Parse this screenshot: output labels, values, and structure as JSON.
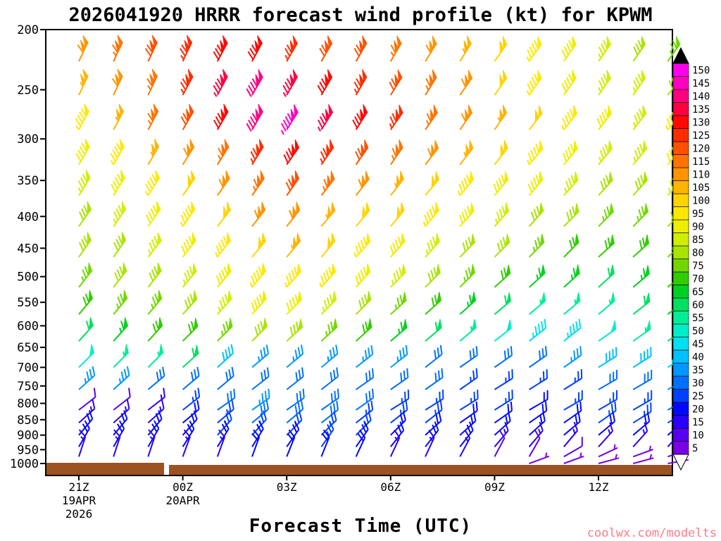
{
  "page": {
    "title": "2026041920 HRRR forecast wind profile (kt) for KPWM",
    "x_axis_title": "Forecast Time (UTC)",
    "watermark": "coolwx.com/modelts"
  },
  "chart_data": {
    "type": "wind-barb-time-height",
    "model": "HRRR",
    "init_time": "2026041920",
    "station": "KPWM",
    "units": "kt",
    "y_scale": "log-pressure",
    "y_ticks": [
      "200",
      "250",
      "300",
      "350",
      "400",
      "450",
      "500",
      "550",
      "600",
      "650",
      "700",
      "750",
      "800",
      "850",
      "900",
      "950",
      "1000"
    ],
    "x_ticks": [
      {
        "col": 0,
        "lines": [
          "21Z",
          "19APR",
          "2026"
        ]
      },
      {
        "col": 3,
        "lines": [
          "00Z",
          "20APR"
        ]
      },
      {
        "col": 6,
        "lines": [
          "03Z"
        ]
      },
      {
        "col": 9,
        "lines": [
          "06Z"
        ]
      },
      {
        "col": 12,
        "lines": [
          "09Z"
        ]
      },
      {
        "col": 15,
        "lines": [
          "12Z"
        ]
      }
    ],
    "times": [
      "21Z",
      "22Z",
      "23Z",
      "00Z",
      "01Z",
      "02Z",
      "03Z",
      "04Z",
      "05Z",
      "06Z",
      "07Z",
      "08Z",
      "09Z",
      "10Z",
      "11Z",
      "12Z",
      "13Z",
      "14Z"
    ],
    "pressure_levels": [
      225,
      255,
      290,
      330,
      370,
      415,
      465,
      520,
      575,
      635,
      700,
      760,
      820,
      860,
      900,
      940,
      975,
      1000
    ],
    "speeds_kt": [
      [
        110,
        115,
        120,
        125,
        130,
        130,
        125,
        120,
        120,
        115,
        110,
        105,
        100,
        95,
        90,
        85,
        80,
        75
      ],
      [
        105,
        110,
        115,
        125,
        135,
        140,
        135,
        130,
        125,
        120,
        115,
        110,
        100,
        95,
        90,
        85,
        85,
        80
      ],
      [
        95,
        105,
        115,
        120,
        130,
        140,
        145,
        135,
        130,
        125,
        115,
        110,
        105,
        100,
        95,
        90,
        85,
        95
      ],
      [
        90,
        95,
        105,
        110,
        115,
        125,
        130,
        125,
        120,
        115,
        110,
        105,
        100,
        95,
        90,
        85,
        85,
        90
      ],
      [
        85,
        90,
        95,
        100,
        110,
        115,
        120,
        115,
        110,
        105,
        100,
        95,
        90,
        90,
        85,
        80,
        80,
        85
      ],
      [
        80,
        85,
        90,
        95,
        100,
        110,
        110,
        105,
        100,
        100,
        95,
        90,
        85,
        80,
        80,
        75,
        75,
        80
      ],
      [
        80,
        80,
        85,
        90,
        95,
        100,
        105,
        100,
        95,
        90,
        85,
        80,
        80,
        75,
        70,
        70,
        70,
        75
      ],
      [
        75,
        80,
        80,
        85,
        90,
        95,
        95,
        95,
        90,
        85,
        80,
        75,
        70,
        65,
        65,
        60,
        65,
        70
      ],
      [
        70,
        75,
        75,
        80,
        85,
        90,
        90,
        85,
        80,
        75,
        70,
        65,
        60,
        55,
        55,
        55,
        60,
        65
      ],
      [
        60,
        65,
        70,
        70,
        75,
        80,
        80,
        75,
        70,
        65,
        60,
        55,
        50,
        45,
        45,
        50,
        55,
        60
      ],
      [
        50,
        55,
        55,
        60,
        40,
        35,
        35,
        35,
        35,
        35,
        30,
        30,
        30,
        30,
        35,
        40,
        40,
        45
      ],
      [
        35,
        35,
        30,
        30,
        30,
        30,
        30,
        30,
        30,
        30,
        30,
        25,
        25,
        25,
        25,
        30,
        30,
        35
      ],
      [
        10,
        10,
        15,
        25,
        30,
        35,
        30,
        30,
        30,
        25,
        25,
        25,
        25,
        20,
        25,
        25,
        25,
        30
      ],
      [
        15,
        15,
        15,
        20,
        25,
        30,
        30,
        30,
        25,
        25,
        25,
        20,
        20,
        20,
        20,
        25,
        25,
        25
      ],
      [
        20,
        20,
        20,
        20,
        25,
        25,
        25,
        25,
        25,
        20,
        20,
        20,
        20,
        20,
        20,
        20,
        20,
        20
      ],
      [
        20,
        20,
        20,
        20,
        20,
        20,
        20,
        25,
        20,
        20,
        20,
        20,
        15,
        15,
        15,
        15,
        15,
        15
      ],
      [
        15,
        15,
        15,
        15,
        15,
        20,
        20,
        20,
        20,
        15,
        15,
        15,
        10,
        10,
        10,
        5,
        5,
        5
      ],
      [
        0,
        0,
        0,
        0,
        0,
        0,
        0,
        0,
        0,
        0,
        0,
        0,
        0,
        5,
        5,
        5,
        5,
        5
      ]
    ],
    "dirs_deg_from": [
      [
        205,
        205,
        205,
        205,
        208,
        208,
        210,
        210,
        210,
        210,
        212,
        212,
        215,
        215,
        215,
        215,
        215,
        215
      ],
      [
        205,
        205,
        205,
        208,
        208,
        210,
        210,
        210,
        210,
        212,
        212,
        215,
        215,
        215,
        215,
        215,
        215,
        218
      ],
      [
        208,
        208,
        208,
        210,
        210,
        210,
        212,
        212,
        212,
        215,
        215,
        215,
        215,
        218,
        218,
        218,
        218,
        220
      ],
      [
        210,
        210,
        210,
        212,
        212,
        212,
        215,
        215,
        215,
        215,
        218,
        218,
        218,
        220,
        220,
        220,
        220,
        220
      ],
      [
        212,
        212,
        212,
        215,
        215,
        215,
        215,
        218,
        218,
        218,
        220,
        220,
        220,
        220,
        222,
        222,
        222,
        222
      ],
      [
        215,
        215,
        215,
        215,
        218,
        218,
        218,
        220,
        220,
        220,
        220,
        222,
        222,
        222,
        225,
        225,
        225,
        225
      ],
      [
        215,
        215,
        218,
        218,
        218,
        220,
        220,
        220,
        222,
        222,
        222,
        225,
        225,
        225,
        225,
        228,
        228,
        228
      ],
      [
        218,
        218,
        218,
        220,
        220,
        220,
        222,
        222,
        222,
        225,
        225,
        225,
        228,
        228,
        228,
        228,
        230,
        230
      ],
      [
        220,
        220,
        220,
        222,
        222,
        222,
        225,
        225,
        225,
        228,
        228,
        228,
        230,
        230,
        230,
        230,
        232,
        232
      ],
      [
        222,
        222,
        222,
        225,
        225,
        225,
        228,
        228,
        228,
        230,
        230,
        230,
        232,
        232,
        232,
        235,
        235,
        235
      ],
      [
        225,
        225,
        225,
        228,
        228,
        230,
        230,
        230,
        232,
        232,
        232,
        235,
        235,
        235,
        235,
        238,
        238,
        238
      ],
      [
        228,
        228,
        230,
        230,
        230,
        232,
        232,
        232,
        235,
        235,
        235,
        235,
        238,
        238,
        238,
        240,
        240,
        240
      ],
      [
        232,
        232,
        232,
        232,
        235,
        235,
        235,
        235,
        235,
        238,
        238,
        238,
        238,
        240,
        240,
        240,
        240,
        240
      ],
      [
        228,
        228,
        228,
        230,
        230,
        230,
        230,
        232,
        232,
        232,
        232,
        235,
        235,
        235,
        235,
        235,
        238,
        238
      ],
      [
        220,
        220,
        220,
        222,
        222,
        222,
        225,
        225,
        225,
        225,
        228,
        228,
        228,
        228,
        230,
        230,
        230,
        230
      ],
      [
        210,
        210,
        210,
        212,
        212,
        212,
        215,
        215,
        215,
        218,
        218,
        218,
        220,
        220,
        220,
        222,
        222,
        222
      ],
      [
        198,
        198,
        198,
        200,
        200,
        200,
        202,
        202,
        205,
        205,
        205,
        208,
        208,
        210,
        240,
        245,
        250,
        250
      ],
      [
        0,
        0,
        0,
        0,
        0,
        0,
        0,
        0,
        0,
        0,
        0,
        0,
        0,
        250,
        250,
        255,
        255,
        260
      ]
    ],
    "colorbar": {
      "min": 5,
      "max": 150,
      "step": 5,
      "colors": [
        "#7b00e6",
        "#5a00f0",
        "#2a00fa",
        "#0008ff",
        "#0040ff",
        "#0070ff",
        "#0098ff",
        "#00c0ff",
        "#00e0f0",
        "#00eec8",
        "#00ee96",
        "#00e060",
        "#00d020",
        "#30cc00",
        "#70d800",
        "#a8e400",
        "#d0ee00",
        "#eeee00",
        "#ffe800",
        "#ffd400",
        "#ffb400",
        "#ff9400",
        "#ff7400",
        "#ff5000",
        "#ff2c00",
        "#ff0800",
        "#ff0040",
        "#ff0080",
        "#ff00c0",
        "#ff00ee"
      ],
      "over_color": "#000000",
      "under_style": "open-triangle"
    },
    "ground_color": "#9d5221",
    "watermark_color": "#ff7b8b",
    "frame_color": "#000000"
  }
}
